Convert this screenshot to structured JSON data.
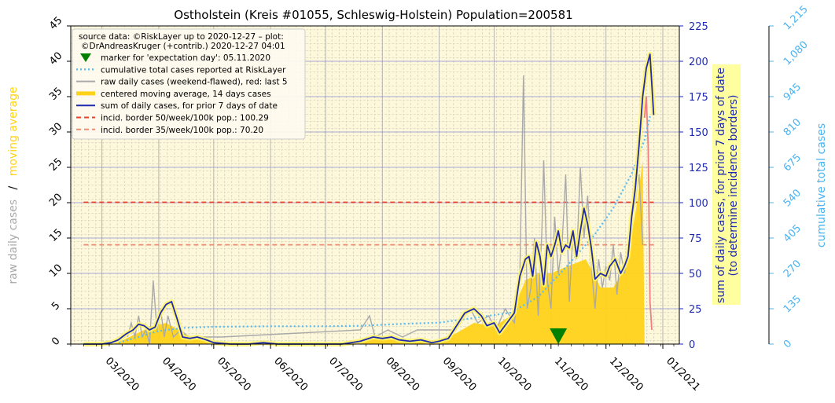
{
  "chart_data": {
    "type": "line",
    "title": "Ostholstein (Kreis #01055, Schleswig-Holstein) Population=200581",
    "left_axis": {
      "label_part1": "raw daily cases",
      "label_sep": "/",
      "label_part2": "moving average",
      "ylim": [
        0,
        45
      ],
      "ticks": [
        "0",
        "5",
        "10",
        "15",
        "20",
        "25",
        "30",
        "35",
        "40",
        "45"
      ]
    },
    "right_axis": {
      "label_line1": "sum of daily cases, for prior 7 days of date",
      "label_line2": "(to determine incidence borders)",
      "ylim": [
        0,
        225
      ],
      "ticks": [
        "0",
        "25",
        "50",
        "75",
        "100",
        "125",
        "150",
        "175",
        "200",
        "225"
      ]
    },
    "far_right_axis": {
      "label": "cumulative total cases",
      "ylim": [
        0,
        1215
      ],
      "ticks": [
        "0",
        "135",
        "270",
        "405",
        "540",
        "675",
        "810",
        "945",
        "1,080",
        "1,215"
      ]
    },
    "x_axis": {
      "range": [
        "2020-02-13",
        "2021-01-10"
      ],
      "ticks": [
        {
          "date": "2020-03-01",
          "label": "03/2020"
        },
        {
          "date": "2020-04-01",
          "label": "04/2020"
        },
        {
          "date": "2020-05-01",
          "label": "05/2020"
        },
        {
          "date": "2020-06-01",
          "label": "06/2020"
        },
        {
          "date": "2020-07-01",
          "label": "07/2020"
        },
        {
          "date": "2020-08-01",
          "label": "08/2020"
        },
        {
          "date": "2020-09-01",
          "label": "09/2020"
        },
        {
          "date": "2020-10-01",
          "label": "10/2020"
        },
        {
          "date": "2020-11-01",
          "label": "11/2020"
        },
        {
          "date": "2020-12-01",
          "label": "12/2020"
        },
        {
          "date": "2021-01-01",
          "label": "01/2021"
        }
      ]
    },
    "grid": true,
    "legend_position": "top-left",
    "legend": {
      "source_line1": "source data: ©RiskLayer up to 2020-12-27 – plot:",
      "source_line2": "©DrAndreasKruger (+contrib.) 2020-12-27 04:01",
      "items": [
        {
          "key": "marker",
          "label": "marker for 'expectation day': 05.11.2020"
        },
        {
          "key": "cumulative",
          "label": "cumulative total cases reported at RiskLayer"
        },
        {
          "key": "raw",
          "label": "raw daily cases (weekend-flawed), red: last 5"
        },
        {
          "key": "avg",
          "label": "centered moving average, 14 days cases"
        },
        {
          "key": "sum7",
          "label": "sum of daily cases, for prior 7 days of date"
        },
        {
          "key": "b50",
          "label": "incid. border 50/week/100k pop.: 100.29"
        },
        {
          "key": "b35",
          "label": "incid. border 35/week/100k pop.: 70.20"
        }
      ]
    },
    "incidence_borders": {
      "border50": 100.29,
      "border35": 70.2,
      "start": "2020-02-20",
      "end": "2020-12-27"
    },
    "expectation_day": "2020-11-05",
    "colors": {
      "plot_bg": "#fdf7dc",
      "moving_avg": "#ffd21a",
      "raw": "#a9a9a9",
      "raw_last5": "#f08080",
      "sum7": "#1f2ab0",
      "sum7_glow": "#fff56a",
      "cumulative": "#5bbcf0",
      "border50": "#e8402a",
      "border35": "#f08a70",
      "marker": "#008000",
      "right_axis": "#1f2ab0",
      "far_right_axis": "#4ab4f0",
      "left_label_raw": "#a9a9a9",
      "left_label_avg": "#ffd21a",
      "right_label_bg": "#ffffa0"
    },
    "series": {
      "sum7": [
        [
          "2020-02-20",
          0
        ],
        [
          "2020-03-01",
          0
        ],
        [
          "2020-03-06",
          1
        ],
        [
          "2020-03-10",
          3
        ],
        [
          "2020-03-14",
          7
        ],
        [
          "2020-03-18",
          10
        ],
        [
          "2020-03-21",
          14
        ],
        [
          "2020-03-24",
          13
        ],
        [
          "2020-03-27",
          10
        ],
        [
          "2020-03-30",
          12
        ],
        [
          "2020-04-02",
          22
        ],
        [
          "2020-04-05",
          28
        ],
        [
          "2020-04-08",
          30
        ],
        [
          "2020-04-11",
          18
        ],
        [
          "2020-04-14",
          5
        ],
        [
          "2020-04-18",
          4
        ],
        [
          "2020-04-22",
          5
        ],
        [
          "2020-04-27",
          3
        ],
        [
          "2020-05-01",
          1
        ],
        [
          "2020-05-10",
          0
        ],
        [
          "2020-05-20",
          0
        ],
        [
          "2020-05-28",
          1
        ],
        [
          "2020-06-05",
          0
        ],
        [
          "2020-06-20",
          0
        ],
        [
          "2020-07-10",
          0
        ],
        [
          "2020-07-20",
          2
        ],
        [
          "2020-07-27",
          5
        ],
        [
          "2020-08-01",
          4
        ],
        [
          "2020-08-06",
          5
        ],
        [
          "2020-08-10",
          3
        ],
        [
          "2020-08-16",
          2
        ],
        [
          "2020-08-22",
          3
        ],
        [
          "2020-08-28",
          1
        ],
        [
          "2020-09-01",
          2
        ],
        [
          "2020-09-06",
          4
        ],
        [
          "2020-09-10",
          12
        ],
        [
          "2020-09-15",
          22
        ],
        [
          "2020-09-20",
          25
        ],
        [
          "2020-09-24",
          20
        ],
        [
          "2020-09-27",
          13
        ],
        [
          "2020-10-01",
          15
        ],
        [
          "2020-10-04",
          8
        ],
        [
          "2020-10-08",
          15
        ],
        [
          "2020-10-12",
          22
        ],
        [
          "2020-10-15",
          48
        ],
        [
          "2020-10-18",
          60
        ],
        [
          "2020-10-20",
          62
        ],
        [
          "2020-10-22",
          48
        ],
        [
          "2020-10-24",
          72
        ],
        [
          "2020-10-26",
          62
        ],
        [
          "2020-10-28",
          42
        ],
        [
          "2020-10-30",
          70
        ],
        [
          "2020-11-01",
          62
        ],
        [
          "2020-11-03",
          70
        ],
        [
          "2020-11-05",
          80
        ],
        [
          "2020-11-07",
          65
        ],
        [
          "2020-11-09",
          70
        ],
        [
          "2020-11-11",
          68
        ],
        [
          "2020-11-13",
          80
        ],
        [
          "2020-11-15",
          62
        ],
        [
          "2020-11-17",
          80
        ],
        [
          "2020-11-19",
          96
        ],
        [
          "2020-11-21",
          85
        ],
        [
          "2020-11-23",
          68
        ],
        [
          "2020-11-25",
          46
        ],
        [
          "2020-11-28",
          50
        ],
        [
          "2020-12-01",
          48
        ],
        [
          "2020-12-03",
          55
        ],
        [
          "2020-12-06",
          60
        ],
        [
          "2020-12-09",
          50
        ],
        [
          "2020-12-11",
          55
        ],
        [
          "2020-12-13",
          62
        ],
        [
          "2020-12-15",
          90
        ],
        [
          "2020-12-17",
          110
        ],
        [
          "2020-12-19",
          140
        ],
        [
          "2020-12-21",
          175
        ],
        [
          "2020-12-23",
          195
        ],
        [
          "2020-12-25",
          205
        ],
        [
          "2020-12-27",
          162
        ]
      ],
      "moving_avg": [
        [
          "2020-02-13",
          0
        ],
        [
          "2020-03-05",
          0
        ],
        [
          "2020-03-12",
          0.5
        ],
        [
          "2020-03-20",
          1.5
        ],
        [
          "2020-03-28",
          2.5
        ],
        [
          "2020-04-05",
          3
        ],
        [
          "2020-04-12",
          2
        ],
        [
          "2020-04-20",
          0.8
        ],
        [
          "2020-05-01",
          0.3
        ],
        [
          "2020-05-20",
          0.1
        ],
        [
          "2020-07-10",
          0.1
        ],
        [
          "2020-07-25",
          0.8
        ],
        [
          "2020-08-10",
          0.6
        ],
        [
          "2020-08-30",
          0.4
        ],
        [
          "2020-09-10",
          1.5
        ],
        [
          "2020-09-20",
          3
        ],
        [
          "2020-10-01",
          2.5
        ],
        [
          "2020-10-10",
          4
        ],
        [
          "2020-10-18",
          9
        ],
        [
          "2020-10-25",
          10
        ],
        [
          "2020-11-01",
          10
        ],
        [
          "2020-11-10",
          11
        ],
        [
          "2020-11-20",
          12
        ],
        [
          "2020-11-28",
          8
        ],
        [
          "2020-12-05",
          8
        ],
        [
          "2020-12-12",
          11
        ],
        [
          "2020-12-18",
          20
        ],
        [
          "2020-12-21",
          26
        ],
        [
          "2020-12-22",
          0
        ]
      ],
      "cumulative": [
        [
          "2020-02-20",
          0
        ],
        [
          "2020-03-10",
          5
        ],
        [
          "2020-03-20",
          25
        ],
        [
          "2020-04-01",
          50
        ],
        [
          "2020-04-15",
          62
        ],
        [
          "2020-05-01",
          66
        ],
        [
          "2020-06-01",
          68
        ],
        [
          "2020-07-01",
          68
        ],
        [
          "2020-07-20",
          70
        ],
        [
          "2020-08-15",
          78
        ],
        [
          "2020-09-01",
          82
        ],
        [
          "2020-09-20",
          100
        ],
        [
          "2020-10-10",
          120
        ],
        [
          "2020-10-25",
          180
        ],
        [
          "2020-11-10",
          300
        ],
        [
          "2020-11-25",
          420
        ],
        [
          "2020-12-05",
          520
        ],
        [
          "2020-12-15",
          650
        ],
        [
          "2020-12-22",
          780
        ],
        [
          "2020-12-25",
          870
        ]
      ],
      "raw_daily": [
        [
          "2020-03-15",
          1
        ],
        [
          "2020-03-17",
          3
        ],
        [
          "2020-03-19",
          1
        ],
        [
          "2020-03-21",
          4
        ],
        [
          "2020-03-23",
          1
        ],
        [
          "2020-03-25",
          2
        ],
        [
          "2020-03-27",
          0
        ],
        [
          "2020-03-29",
          9
        ],
        [
          "2020-03-31",
          2
        ],
        [
          "2020-04-02",
          5
        ],
        [
          "2020-04-04",
          1
        ],
        [
          "2020-04-06",
          4
        ],
        [
          "2020-04-09",
          1
        ],
        [
          "2020-04-13",
          2
        ],
        [
          "2020-04-17",
          1
        ],
        [
          "2020-05-05",
          1
        ],
        [
          "2020-07-20",
          2
        ],
        [
          "2020-07-25",
          4
        ],
        [
          "2020-07-28",
          1
        ],
        [
          "2020-08-04",
          2
        ],
        [
          "2020-08-12",
          1
        ],
        [
          "2020-08-20",
          2
        ],
        [
          "2020-09-10",
          2
        ],
        [
          "2020-09-15",
          4
        ],
        [
          "2020-09-18",
          5
        ],
        [
          "2020-09-22",
          3
        ],
        [
          "2020-09-28",
          4
        ],
        [
          "2020-10-02",
          2
        ],
        [
          "2020-10-07",
          5
        ],
        [
          "2020-10-12",
          3
        ],
        [
          "2020-10-15",
          10
        ],
        [
          "2020-10-17",
          38
        ],
        [
          "2020-10-19",
          5
        ],
        [
          "2020-10-21",
          8
        ],
        [
          "2020-10-23",
          15
        ],
        [
          "2020-10-25",
          4
        ],
        [
          "2020-10-27",
          16
        ],
        [
          "2020-10-28",
          26
        ],
        [
          "2020-10-30",
          9
        ],
        [
          "2020-11-01",
          5
        ],
        [
          "2020-11-03",
          18
        ],
        [
          "2020-11-05",
          10
        ],
        [
          "2020-11-07",
          14
        ],
        [
          "2020-11-09",
          24
        ],
        [
          "2020-11-11",
          6
        ],
        [
          "2020-11-13",
          16
        ],
        [
          "2020-11-15",
          12
        ],
        [
          "2020-11-17",
          25
        ],
        [
          "2020-11-19",
          15
        ],
        [
          "2020-11-21",
          21
        ],
        [
          "2020-11-23",
          11
        ],
        [
          "2020-11-25",
          5
        ],
        [
          "2020-11-27",
          12
        ],
        [
          "2020-11-29",
          8
        ],
        [
          "2020-12-01",
          11
        ],
        [
          "2020-12-03",
          9
        ],
        [
          "2020-12-05",
          14
        ],
        [
          "2020-12-07",
          7
        ],
        [
          "2020-12-09",
          13
        ],
        [
          "2020-12-11",
          10
        ],
        [
          "2020-12-13",
          12
        ],
        [
          "2020-12-15",
          18
        ],
        [
          "2020-12-17",
          20
        ],
        [
          "2020-12-19",
          24
        ],
        [
          "2020-12-21",
          14
        ]
      ],
      "raw_last5": [
        [
          "2020-12-22",
          32
        ],
        [
          "2020-12-23",
          35
        ],
        [
          "2020-12-24",
          28
        ],
        [
          "2020-12-25",
          6
        ],
        [
          "2020-12-26",
          2
        ]
      ]
    }
  }
}
